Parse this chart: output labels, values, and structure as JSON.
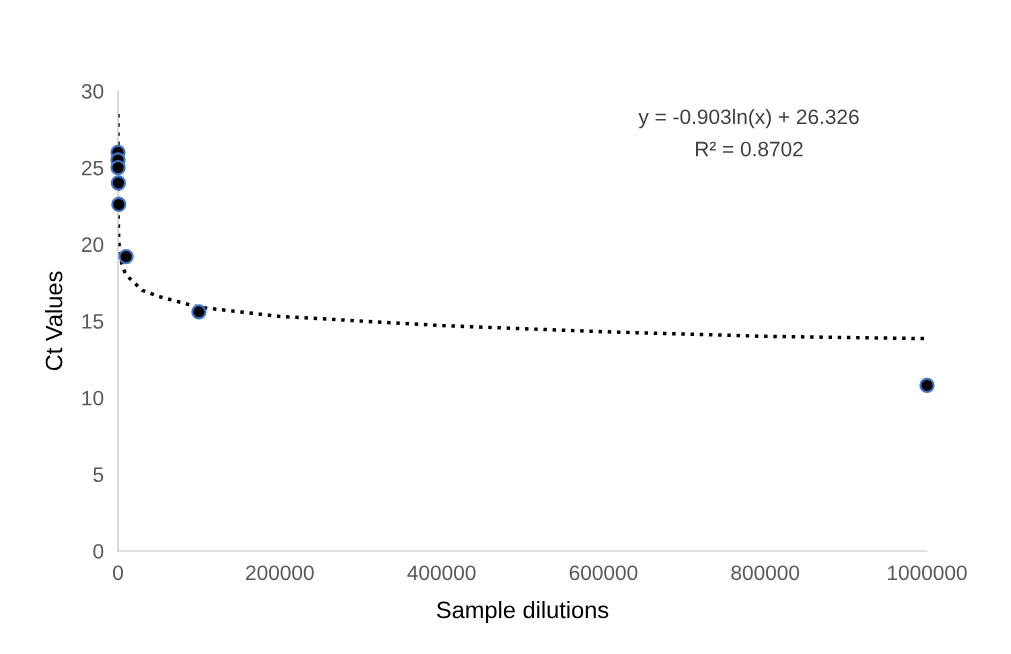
{
  "chart_data": {
    "type": "scatter",
    "xlabel": "Sample dilutions",
    "ylabel": "Ct Values",
    "annotations": [
      "y = -0.903ln(x) + 26.326",
      "R² = 0.8702"
    ],
    "xlim": [
      0,
      1000000
    ],
    "xticks": [
      0,
      200000,
      400000,
      600000,
      800000,
      1000000
    ],
    "ylim": [
      0,
      30
    ],
    "yticks": [
      0,
      5,
      10,
      15,
      20,
      25,
      30
    ],
    "grid": false,
    "legend": false,
    "series": [
      {
        "color": "#000000",
        "marker": "circle",
        "x": [
          1,
          10,
          100,
          500,
          1000,
          10000,
          100000,
          1000000
        ],
        "values": [
          26.0,
          25.5,
          25.0,
          24.0,
          22.6,
          19.2,
          15.6,
          10.8
        ]
      },
      {
        "type": "line",
        "marker": "none",
        "line_style": "dotted",
        "color": "#000000",
        "x": [
          0.09,
          1,
          100,
          1000,
          5000,
          10000,
          30000,
          50000,
          100000,
          200000,
          400000,
          600000,
          800000,
          1000000
        ],
        "values": [
          28.5,
          26.3,
          22.2,
          20.1,
          18.6,
          18.0,
          17.0,
          16.6,
          15.9,
          15.3,
          14.7,
          14.3,
          14.0,
          13.85
        ]
      }
    ]
  }
}
